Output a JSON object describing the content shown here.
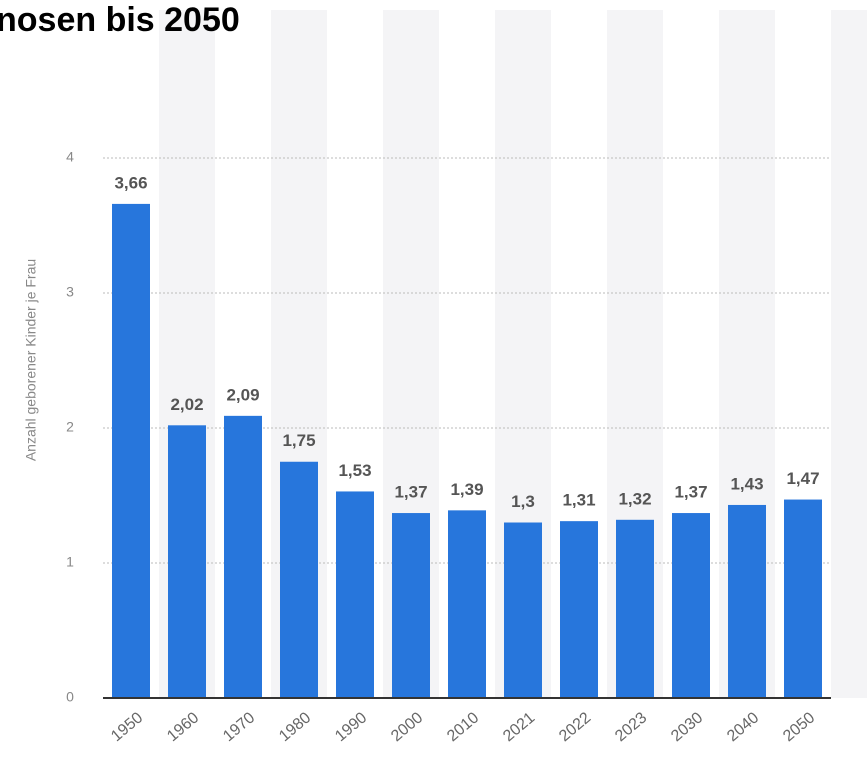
{
  "chart_data": {
    "type": "bar",
    "title": "nosen bis 2050",
    "y_label": "Anzahl geborener Kinder je Frau",
    "categories": [
      "1950",
      "1960",
      "1970",
      "1980",
      "1990",
      "2000",
      "2010",
      "2021",
      "2022",
      "2023",
      "2030",
      "2040",
      "2050"
    ],
    "values": [
      3.66,
      2.02,
      2.09,
      1.75,
      1.53,
      1.37,
      1.39,
      1.3,
      1.31,
      1.32,
      1.37,
      1.43,
      1.47
    ],
    "value_labels": [
      "3,66",
      "2,02",
      "2,09",
      "1,75",
      "1,53",
      "1,37",
      "1,39",
      "1,3",
      "1,31",
      "1,32",
      "1,37",
      "1,43",
      "1,47"
    ],
    "color": "#2776dc",
    "ylim": [
      0,
      4
    ],
    "yticks": [
      0,
      1,
      2,
      3,
      4
    ],
    "grid": true
  }
}
